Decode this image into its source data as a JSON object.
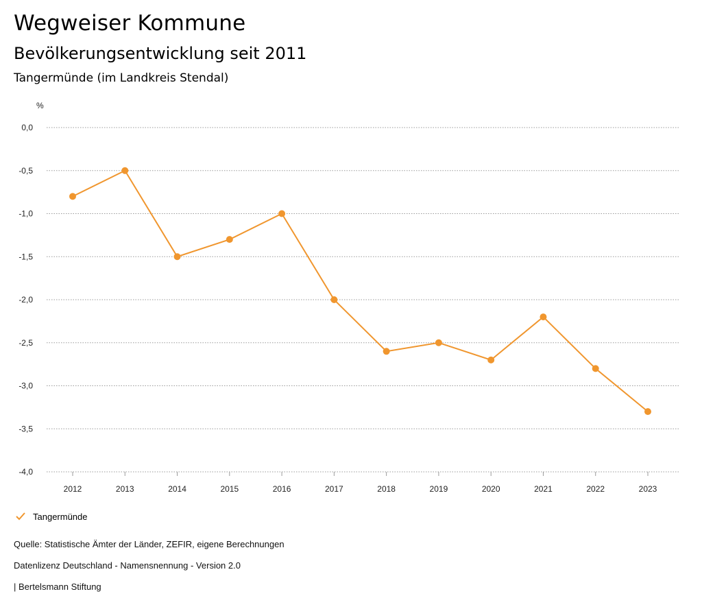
{
  "header": {
    "title": "Wegweiser Kommune",
    "subtitle": "Bevölkerungsentwicklung seit 2011",
    "region": "Tangermünde (im Landkreis Stendal)"
  },
  "chart_data": {
    "type": "line",
    "ylabel": "%",
    "ylim": [
      -4.0,
      0.0
    ],
    "yticks": [
      0.0,
      -0.5,
      -1.0,
      -1.5,
      -2.0,
      -2.5,
      -3.0,
      -3.5,
      -4.0
    ],
    "ytick_labels": [
      "0,0",
      "-0,5",
      "-1,0",
      "-1,5",
      "-2,0",
      "-2,5",
      "-3,0",
      "-3,5",
      "-4,0"
    ],
    "categories": [
      "2012",
      "2013",
      "2014",
      "2015",
      "2016",
      "2017",
      "2018",
      "2019",
      "2020",
      "2021",
      "2022",
      "2023"
    ],
    "series": [
      {
        "name": "Tangermünde",
        "color": "#f0962e",
        "values": [
          -0.8,
          -0.5,
          -1.5,
          -1.3,
          -1.0,
          -2.0,
          -2.6,
          -2.5,
          -2.7,
          -2.2,
          -2.8,
          -3.3
        ]
      }
    ],
    "grid": true,
    "legend": "bottom-left"
  },
  "legend": {
    "label": "Tangermünde",
    "icon": "check-icon"
  },
  "footer": {
    "source": "Quelle: Statistische Ämter der Länder, ZEFIR, eigene Berechnungen",
    "license": "Datenlizenz Deutschland - Namensnennung - Version 2.0",
    "brand": "| Bertelsmann Stiftung"
  }
}
